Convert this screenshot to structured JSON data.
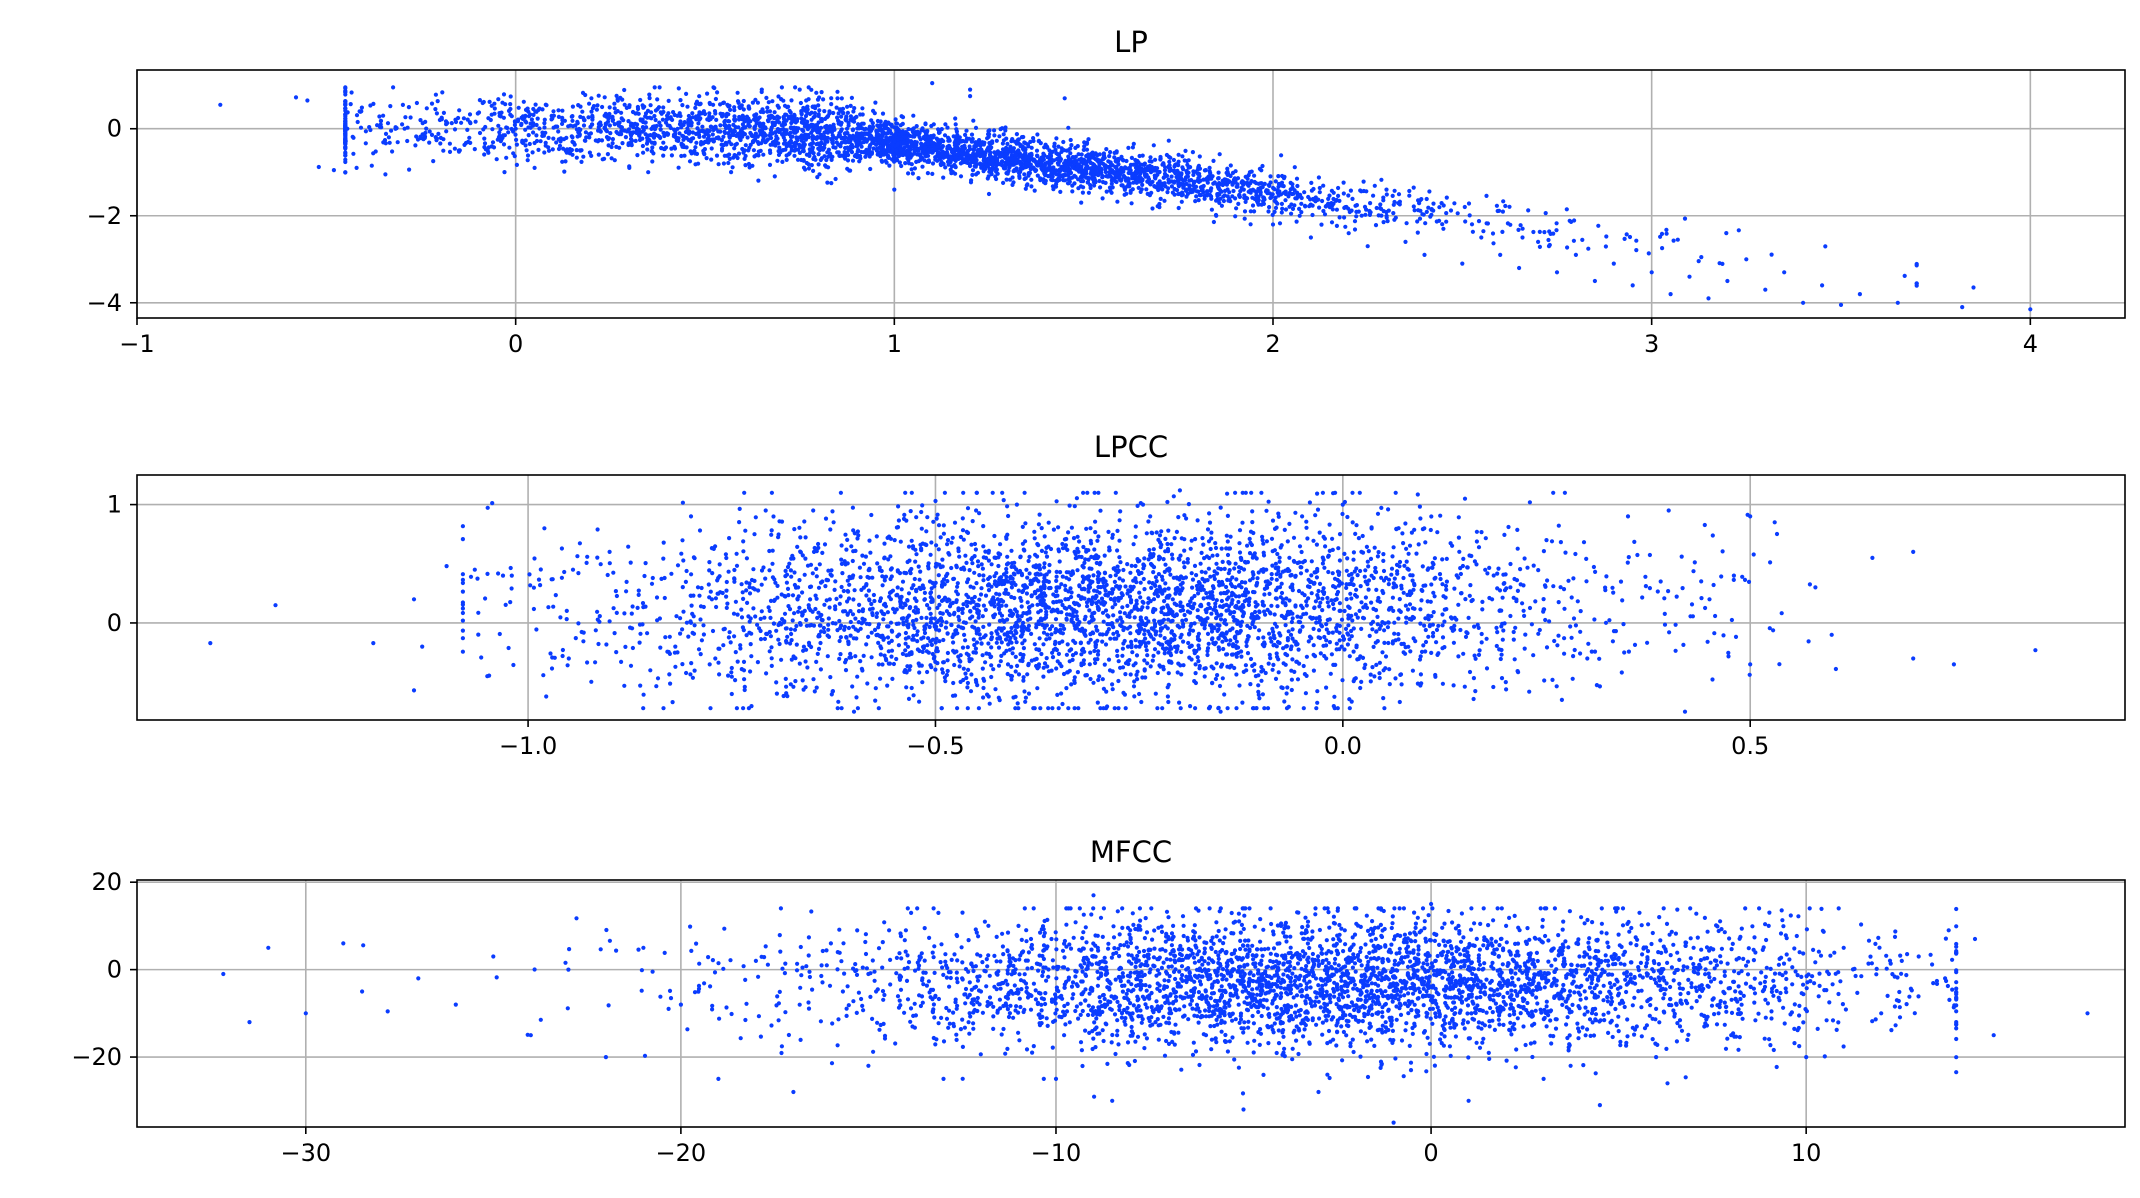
{
  "figure": {
    "background": "#ffffff",
    "point_color": "#0a3cff"
  },
  "chart_data": [
    {
      "type": "scatter",
      "title": "LP",
      "xlabel": "",
      "ylabel": "",
      "xlim": [
        -1,
        4.25
      ],
      "ylim": [
        -4.35,
        1.35
      ],
      "xticks": [
        -1,
        0,
        1,
        2,
        3,
        4
      ],
      "xtick_labels": [
        "−1",
        "0",
        "1",
        "2",
        "3",
        "4"
      ],
      "yticks": [
        -4,
        -2,
        0
      ],
      "ytick_labels": [
        "−4",
        "−2",
        "0"
      ],
      "grid": true,
      "series": [
        {
          "values_note": "",
          "points": [
            [
              -0.78,
              0.55
            ],
            [
              -0.58,
              0.72
            ],
            [
              -0.55,
              0.65
            ],
            [
              -0.52,
              -0.88
            ],
            [
              -0.48,
              -0.95
            ],
            [
              -0.45,
              -1.0
            ],
            [
              -0.42,
              -0.9
            ],
            [
              -0.38,
              -0.85
            ],
            [
              -0.35,
              0.3
            ],
            [
              -0.3,
              0.1
            ],
            [
              -0.25,
              -0.2
            ],
            [
              -0.2,
              0.2
            ],
            [
              -0.15,
              -0.5
            ],
            [
              -0.1,
              0.35
            ],
            [
              -0.05,
              -0.7
            ],
            [
              0.0,
              0.0
            ],
            [
              0.05,
              -0.9
            ],
            [
              0.1,
              0.4
            ],
            [
              0.15,
              -0.2
            ],
            [
              0.2,
              0.7
            ],
            [
              0.25,
              -0.1
            ],
            [
              0.3,
              0.5
            ],
            [
              0.35,
              -1.0
            ],
            [
              0.4,
              0.3
            ],
            [
              0.45,
              0.8
            ],
            [
              0.5,
              -0.3
            ],
            [
              0.55,
              0.6
            ],
            [
              0.6,
              0.1
            ],
            [
              0.65,
              0.9
            ],
            [
              0.7,
              -0.5
            ],
            [
              0.75,
              0.9
            ],
            [
              0.8,
              -0.2
            ],
            [
              0.85,
              0.7
            ],
            [
              0.9,
              -0.4
            ],
            [
              0.95,
              0.6
            ],
            [
              1.0,
              -0.6
            ],
            [
              1.05,
              0.3
            ],
            [
              1.1,
              1.05
            ],
            [
              1.15,
              -0.7
            ],
            [
              1.2,
              0.9
            ],
            [
              1.25,
              -0.5
            ],
            [
              1.3,
              -1.0
            ],
            [
              1.35,
              -0.8
            ],
            [
              1.4,
              -1.2
            ],
            [
              1.45,
              0.7
            ],
            [
              1.5,
              -1.1
            ],
            [
              1.55,
              -1.6
            ],
            [
              1.6,
              -1.3
            ],
            [
              1.65,
              -1.0
            ],
            [
              1.7,
              -1.8
            ],
            [
              1.75,
              -1.5
            ],
            [
              1.8,
              -1.2
            ],
            [
              1.85,
              -2.0
            ],
            [
              1.9,
              -1.6
            ],
            [
              1.95,
              -1.9
            ],
            [
              2.0,
              -2.2
            ],
            [
              2.05,
              -1.5
            ],
            [
              2.1,
              -2.5
            ],
            [
              2.15,
              -1.8
            ],
            [
              2.2,
              -2.4
            ],
            [
              2.25,
              -2.7
            ],
            [
              2.3,
              -2.0
            ],
            [
              2.35,
              -2.6
            ],
            [
              2.4,
              -2.9
            ],
            [
              2.45,
              -2.3
            ],
            [
              2.5,
              -3.1
            ],
            [
              2.55,
              -2.5
            ],
            [
              2.6,
              -2.9
            ],
            [
              2.65,
              -3.2
            ],
            [
              2.7,
              -2.6
            ],
            [
              2.75,
              -3.3
            ],
            [
              2.8,
              -2.9
            ],
            [
              2.85,
              -3.5
            ],
            [
              2.9,
              -3.1
            ],
            [
              2.95,
              -3.6
            ],
            [
              3.0,
              -3.3
            ],
            [
              3.05,
              -3.8
            ],
            [
              3.1,
              -3.4
            ],
            [
              3.15,
              -3.9
            ],
            [
              3.2,
              -3.5
            ],
            [
              3.25,
              -3.0
            ],
            [
              3.3,
              -3.7
            ],
            [
              3.35,
              -3.3
            ],
            [
              3.4,
              -4.0
            ],
            [
              3.45,
              -3.6
            ],
            [
              3.5,
              -4.05
            ],
            [
              3.55,
              -3.8
            ],
            [
              3.65,
              -4.0
            ],
            [
              3.82,
              -4.1
            ],
            [
              3.85,
              -3.65
            ],
            [
              4.0,
              -4.15
            ],
            [
              0.85,
              0.85
            ],
            [
              1.2,
              0.75
            ],
            [
              0.15,
              -0.6
            ],
            [
              0.3,
              -0.9
            ],
            [
              0.55,
              -0.8
            ],
            [
              0.75,
              -0.2
            ],
            [
              1.0,
              -1.4
            ],
            [
              1.25,
              -1.5
            ]
          ]
        }
      ],
      "generator": {
        "count": 3800,
        "seed": 11
      }
    },
    {
      "type": "scatter",
      "title": "LPCC",
      "xlabel": "",
      "ylabel": "",
      "xlim": [
        -1.48,
        0.96
      ],
      "ylim": [
        -0.82,
        1.25
      ],
      "xticks": [
        -1.0,
        -0.5,
        0.0,
        0.5
      ],
      "xtick_labels": [
        "−1.0",
        "−0.5",
        "0.0",
        "0.5"
      ],
      "yticks": [
        0,
        1
      ],
      "ytick_labels": [
        "0",
        "1"
      ],
      "grid": true,
      "series": [
        {
          "points": [
            [
              -1.39,
              -0.17
            ],
            [
              -1.31,
              0.15
            ],
            [
              -1.19,
              -0.17
            ],
            [
              -1.14,
              -0.57
            ],
            [
              -1.14,
              0.2
            ],
            [
              -1.13,
              -0.2
            ],
            [
              -1.1,
              0.48
            ],
            [
              -1.07,
              0.39
            ],
            [
              -1.05,
              -0.45
            ],
            [
              -1.02,
              0.4
            ],
            [
              -0.98,
              0.8
            ],
            [
              -0.95,
              -0.3
            ],
            [
              -0.9,
              0.6
            ],
            [
              -0.85,
              -0.4
            ],
            [
              -0.8,
              0.9
            ],
            [
              -0.75,
              -0.6
            ],
            [
              -0.7,
              0.5
            ],
            [
              -0.65,
              0.95
            ],
            [
              -0.6,
              -0.75
            ],
            [
              -0.55,
              0.7
            ],
            [
              -0.5,
              1.03
            ],
            [
              -0.45,
              -0.5
            ],
            [
              -0.4,
              1.0
            ],
            [
              -0.35,
              0.3
            ],
            [
              -0.3,
              1.1
            ],
            [
              -0.25,
              -0.6
            ],
            [
              -0.2,
              1.12
            ],
            [
              -0.15,
              -0.75
            ],
            [
              -0.1,
              1.1
            ],
            [
              -0.05,
              0.9
            ],
            [
              0.0,
              1.0
            ],
            [
              0.05,
              -0.4
            ],
            [
              0.1,
              0.8
            ],
            [
              0.15,
              1.05
            ],
            [
              0.2,
              -0.5
            ],
            [
              0.25,
              0.7
            ],
            [
              0.3,
              -0.3
            ],
            [
              0.35,
              0.9
            ],
            [
              0.4,
              0.95
            ],
            [
              0.42,
              -0.75
            ],
            [
              0.45,
              0.2
            ],
            [
              0.48,
              0.4
            ],
            [
              0.5,
              0.9
            ],
            [
              0.5,
              -0.35
            ],
            [
              0.53,
              0.85
            ],
            [
              0.58,
              0.3
            ],
            [
              0.6,
              -0.1
            ],
            [
              0.65,
              0.55
            ],
            [
              0.7,
              -0.3
            ],
            [
              0.7,
              0.6
            ],
            [
              0.75,
              -0.35
            ],
            [
              0.85,
              -0.23
            ]
          ]
        }
      ],
      "generator": {
        "count": 3800,
        "seed": 23
      }
    },
    {
      "type": "scatter",
      "title": "MFCC",
      "xlabel": "",
      "ylabel": "",
      "xlim": [
        -34.5,
        18.5
      ],
      "ylim": [
        -36,
        20.5
      ],
      "xticks": [
        -30,
        -20,
        -10,
        0,
        10
      ],
      "xtick_labels": [
        "−30",
        "−20",
        "−10",
        "0",
        "10"
      ],
      "yticks": [
        -20,
        0,
        20
      ],
      "ytick_labels": [
        "−20",
        "0",
        "20"
      ],
      "grid": true,
      "series": [
        {
          "points": [
            [
              -32.2,
              -1
            ],
            [
              -31.5,
              -12
            ],
            [
              -31,
              5
            ],
            [
              -30,
              -10
            ],
            [
              -29,
              6
            ],
            [
              -28.5,
              -5
            ],
            [
              -27,
              -2
            ],
            [
              -26,
              -8
            ],
            [
              -25,
              3
            ],
            [
              -24,
              -15
            ],
            [
              -23,
              0
            ],
            [
              -22,
              -20
            ],
            [
              -21,
              5
            ],
            [
              -20,
              -8
            ],
            [
              -19,
              -25
            ],
            [
              -18,
              2
            ],
            [
              -17,
              -28
            ],
            [
              -16,
              6
            ],
            [
              -15,
              -22
            ],
            [
              -14,
              9
            ],
            [
              -13,
              -25
            ],
            [
              -12,
              -5
            ],
            [
              -11,
              10
            ],
            [
              -10,
              -25
            ],
            [
              -9,
              17
            ],
            [
              -8.5,
              -30
            ],
            [
              -7,
              12
            ],
            [
              -6,
              -15
            ],
            [
              -5,
              -32
            ],
            [
              -4,
              10
            ],
            [
              -3,
              -28
            ],
            [
              -2,
              14
            ],
            [
              -1,
              -35
            ],
            [
              0,
              15
            ],
            [
              1,
              -30
            ],
            [
              2,
              10
            ],
            [
              3,
              -25
            ],
            [
              4,
              12
            ],
            [
              4.5,
              -31
            ],
            [
              5,
              8
            ],
            [
              6,
              -20
            ],
            [
              7,
              5
            ],
            [
              8,
              -15
            ],
            [
              9,
              10
            ],
            [
              10,
              -20
            ],
            [
              11,
              5
            ],
            [
              12,
              -10
            ],
            [
              13,
              3
            ],
            [
              13.8,
              9
            ],
            [
              14,
              -12
            ],
            [
              14.5,
              7
            ],
            [
              15,
              -15
            ],
            [
              17.5,
              -10
            ]
          ]
        }
      ],
      "generator": {
        "count": 3800,
        "seed": 37
      }
    }
  ]
}
